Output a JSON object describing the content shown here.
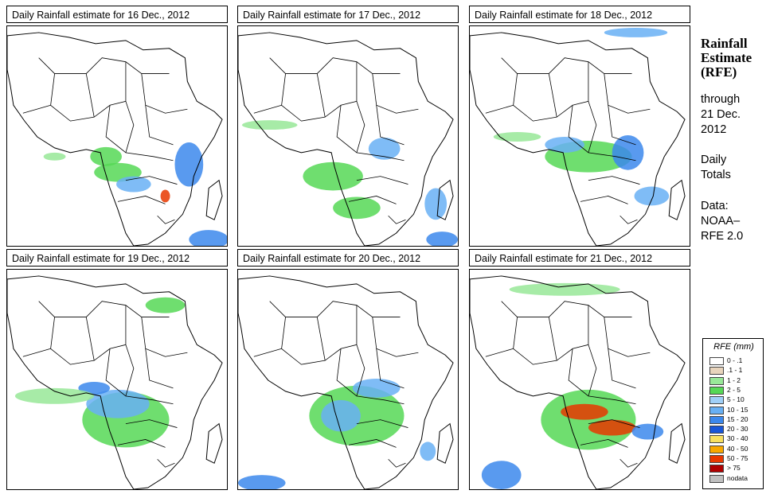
{
  "panels": [
    {
      "title": "Daily Rainfall estimate for  16 Dec., 2012"
    },
    {
      "title": "Daily Rainfall estimate for  17 Dec., 2012"
    },
    {
      "title": "Daily Rainfall estimate for  18 Dec., 2012"
    },
    {
      "title": "Daily Rainfall estimate for  19 Dec., 2012"
    },
    {
      "title": "Daily Rainfall estimate for  20 Dec., 2012"
    },
    {
      "title": "Daily Rainfall estimate for  21 Dec., 2012"
    }
  ],
  "sidebar": {
    "title_line1": "Rainfall",
    "title_line2": "Estimate",
    "title_line3": "(RFE)",
    "through_line1": "through",
    "through_line2": "21 Dec.",
    "through_line3": "2012",
    "daily_line1": "Daily",
    "daily_line2": "Totals",
    "data_line1": "Data:",
    "data_line2": "NOAA–",
    "data_line3": "RFE 2.0"
  },
  "legend": {
    "title": "RFE (mm)",
    "items": [
      {
        "label": "0 - .1",
        "color": "#ffffff"
      },
      {
        "label": ".1 - 1",
        "color": "#e8d4bc"
      },
      {
        "label": "1 - 2",
        "color": "#98e898"
      },
      {
        "label": "2 - 5",
        "color": "#56d856"
      },
      {
        "label": "5 - 10",
        "color": "#a0d0f8"
      },
      {
        "label": "10 - 15",
        "color": "#68b0f4"
      },
      {
        "label": "15 - 20",
        "color": "#3c88ec"
      },
      {
        "label": "20 - 30",
        "color": "#1856d8"
      },
      {
        "label": "30 - 40",
        "color": "#f8e060"
      },
      {
        "label": "40 - 50",
        "color": "#f8a800"
      },
      {
        "label": "50 - 75",
        "color": "#e83800"
      },
      {
        "label": "> 75",
        "color": "#b00000"
      },
      {
        "label": "nodata",
        "color": "#c0c0c0"
      }
    ]
  }
}
